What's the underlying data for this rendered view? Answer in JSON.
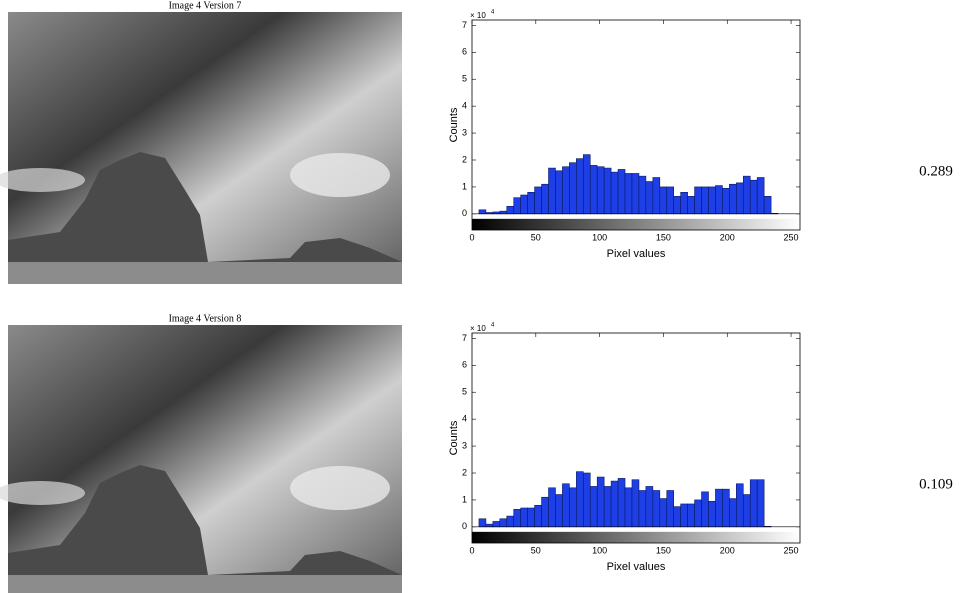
{
  "images": [
    {
      "title": "Image 4 Version 7",
      "score": 0.289
    },
    {
      "title": "Image 4 Version 8",
      "score": 0.109
    }
  ],
  "chart_data": [
    {
      "type": "histogram",
      "xlabel": "Pixel values",
      "ylabel": "Counts",
      "y_scale_label": "× 10",
      "y_scale_exponent": "4",
      "color": "#1f3fe6",
      "bins": [
        0,
        5.45,
        10.9,
        16.35,
        21.8,
        27.25,
        32.7,
        38.15,
        43.6,
        49.05,
        54.5,
        59.95,
        65.4,
        70.85,
        76.3,
        81.75,
        87.2,
        92.65,
        98.1,
        103.55,
        109,
        114.45,
        119.9,
        125.35,
        130.8,
        136.25,
        141.7,
        147.15,
        152.6,
        158.05,
        163.5,
        168.95,
        174.4,
        179.85,
        185.3,
        190.75,
        196.2,
        201.65,
        207.1,
        212.55,
        218,
        223.45,
        228.9,
        234.35,
        239.8,
        245.25,
        250.7,
        256.15
      ],
      "counts": [
        0,
        0.15,
        0.05,
        0.07,
        0.1,
        0.28,
        0.6,
        0.7,
        0.8,
        1.0,
        1.1,
        1.7,
        1.6,
        1.75,
        1.9,
        2.05,
        2.2,
        1.8,
        1.75,
        1.7,
        1.55,
        1.65,
        1.5,
        1.5,
        1.4,
        1.2,
        1.35,
        1.0,
        1.0,
        0.65,
        0.8,
        0.65,
        1.0,
        1.0,
        1.0,
        1.05,
        0.95,
        1.1,
        1.15,
        1.4,
        1.25,
        1.35,
        0.65,
        0.02,
        0,
        0,
        0
      ],
      "xlim": [
        0,
        257
      ],
      "ylim": [
        -0.6,
        7.2
      ],
      "xticks": [
        0,
        50,
        100,
        150,
        200,
        250
      ],
      "yticks": [
        0,
        1,
        2,
        3,
        4,
        5,
        6,
        7
      ]
    },
    {
      "type": "histogram",
      "xlabel": "Pixel values",
      "ylabel": "Counts",
      "y_scale_label": "× 10",
      "y_scale_exponent": "4",
      "color": "#1f3fe6",
      "bins": [
        0,
        5.45,
        10.9,
        16.35,
        21.8,
        27.25,
        32.7,
        38.15,
        43.6,
        49.05,
        54.5,
        59.95,
        65.4,
        70.85,
        76.3,
        81.75,
        87.2,
        92.65,
        98.1,
        103.55,
        109,
        114.45,
        119.9,
        125.35,
        130.8,
        136.25,
        141.7,
        147.15,
        152.6,
        158.05,
        163.5,
        168.95,
        174.4,
        179.85,
        185.3,
        190.75,
        196.2,
        201.65,
        207.1,
        212.55,
        218,
        223.45,
        228.9,
        234.35,
        239.8,
        245.25,
        250.7,
        256.15
      ],
      "counts": [
        0,
        0.3,
        0.1,
        0.2,
        0.3,
        0.4,
        0.65,
        0.7,
        0.7,
        0.8,
        1.1,
        1.45,
        1.2,
        1.6,
        1.45,
        2.05,
        2.0,
        1.5,
        1.85,
        1.5,
        1.7,
        1.8,
        1.45,
        1.75,
        1.35,
        1.5,
        1.35,
        1.05,
        1.35,
        0.75,
        0.85,
        0.85,
        1.0,
        1.3,
        0.95,
        1.4,
        1.4,
        1.05,
        1.6,
        1.2,
        1.75,
        1.75,
        0.02,
        0,
        0,
        0,
        0
      ],
      "xlim": [
        0,
        257
      ],
      "ylim": [
        -0.6,
        7.2
      ],
      "xticks": [
        0,
        50,
        100,
        150,
        200,
        250
      ],
      "yticks": [
        0,
        1,
        2,
        3,
        4,
        5,
        6,
        7
      ]
    }
  ]
}
